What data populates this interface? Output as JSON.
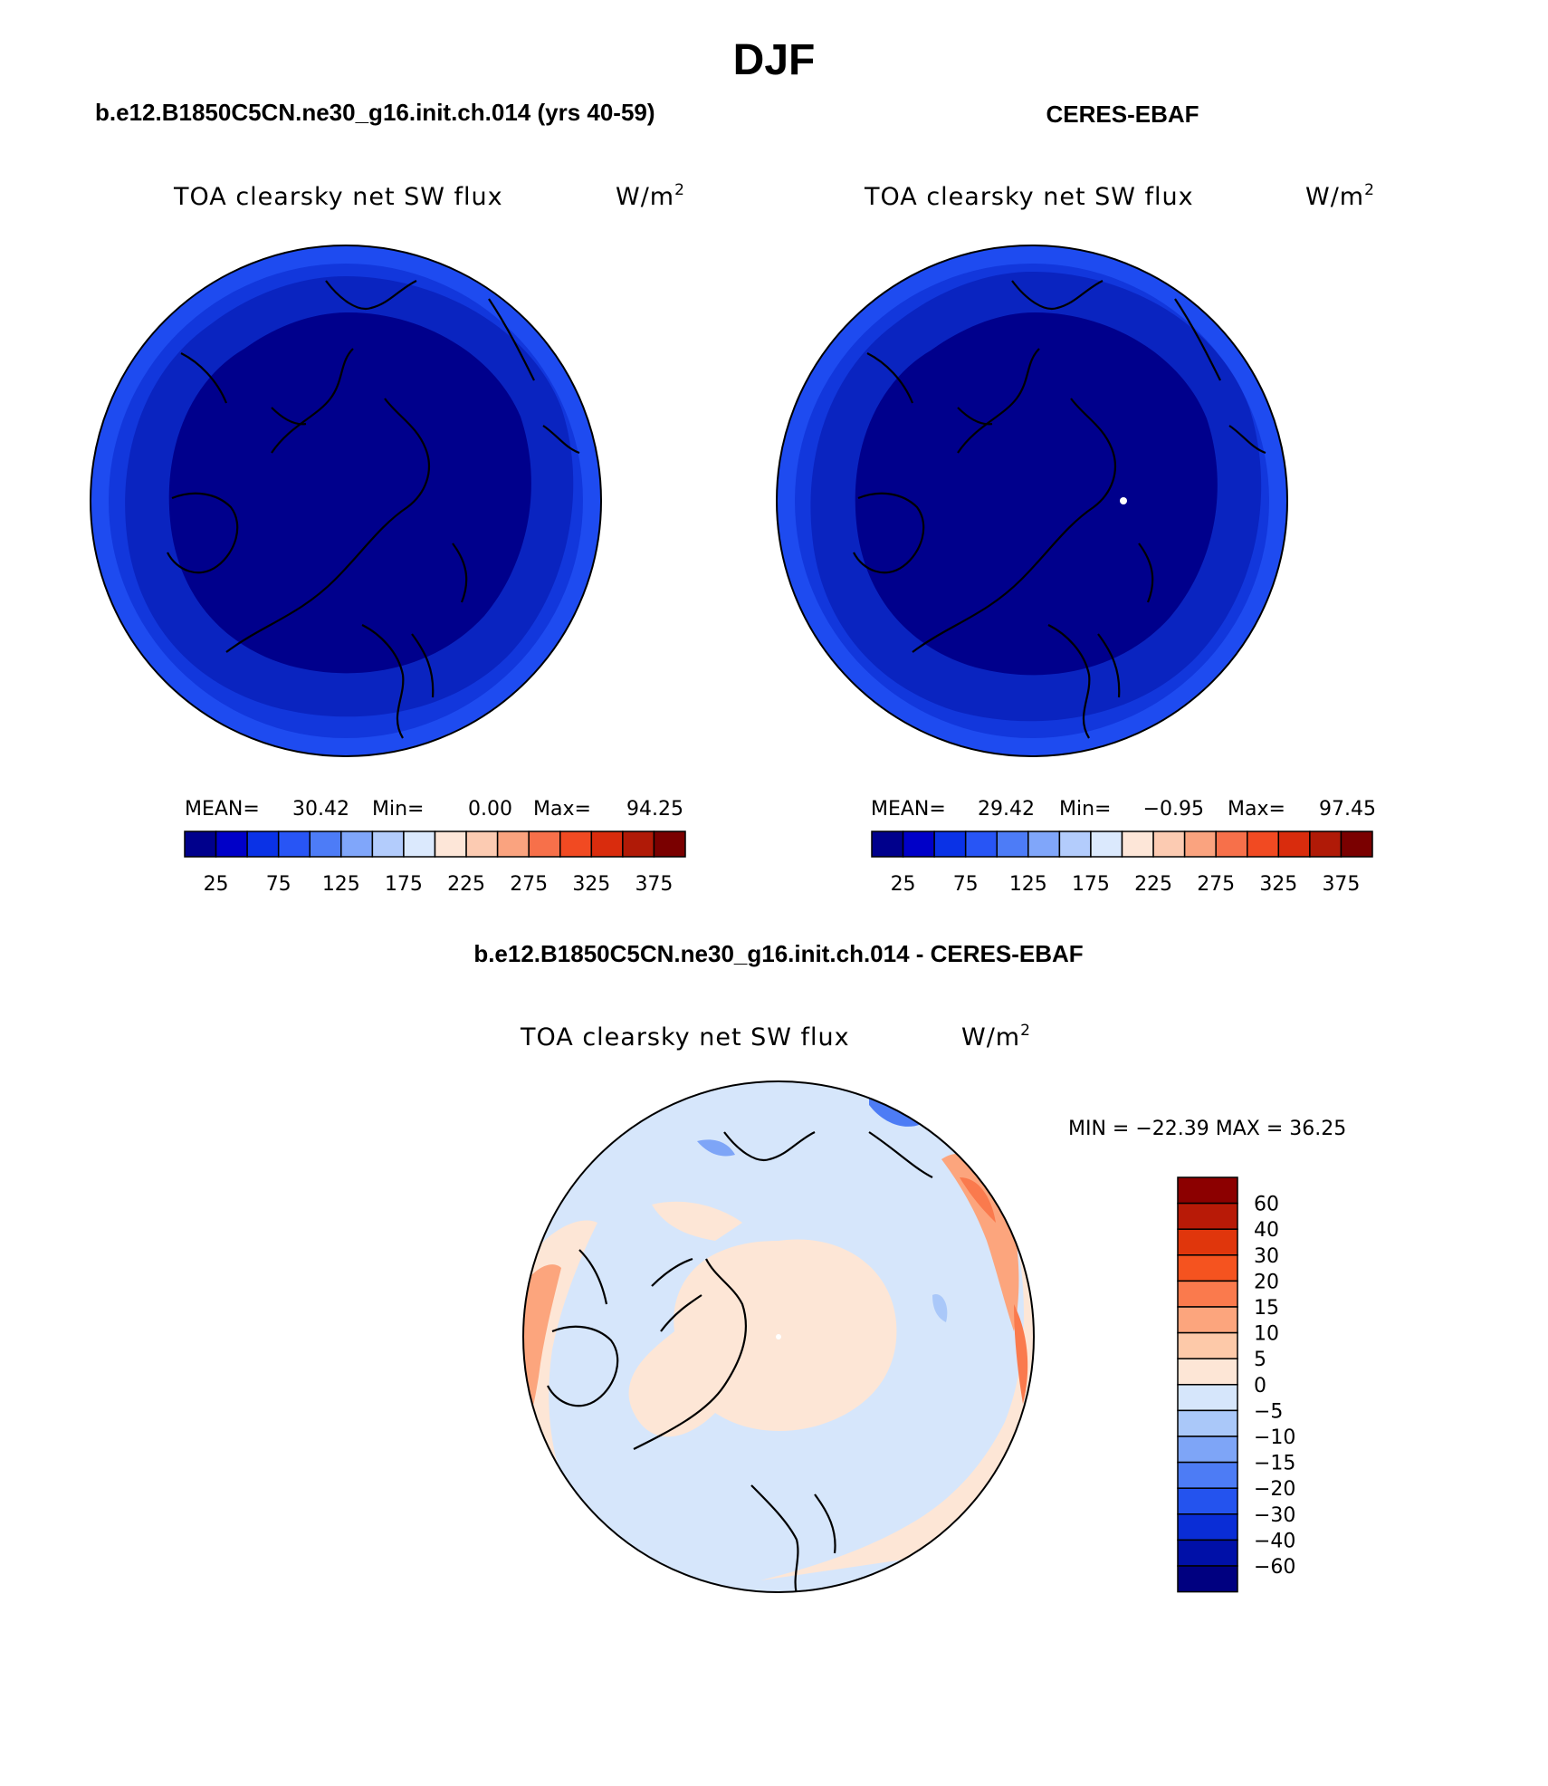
{
  "season": "DJF",
  "panels": [
    {
      "case_title": "b.e12.B1850C5CN.ne30_g16.init.ch.014 (yrs 40-59)",
      "variable": "TOA clearsky net SW flux",
      "units": "W/m",
      "units_sup": "2",
      "stats": {
        "mean_label": "MEAN=",
        "mean": "30.42",
        "min_label": "Min=",
        "min": "0.00",
        "max_label": "Max=",
        "max": "94.25"
      }
    },
    {
      "case_title": "CERES-EBAF",
      "variable": "TOA clearsky net SW flux",
      "units": "W/m",
      "units_sup": "2",
      "stats": {
        "mean_label": "MEAN=",
        "mean": "29.42",
        "min_label": "Min=",
        "min": "−0.95",
        "max_label": "Max=",
        "max": "97.45"
      }
    }
  ],
  "colorbar_abs": {
    "ticks": [
      "25",
      "75",
      "125",
      "175",
      "225",
      "275",
      "325",
      "375"
    ],
    "colors": [
      "#00008c",
      "#0000c8",
      "#0a32e6",
      "#2855f5",
      "#4d7cf7",
      "#80a6fa",
      "#b3ccfc",
      "#dbe9fd",
      "#fde6d8",
      "#fccbb2",
      "#faa37f",
      "#f7704a",
      "#f14a22",
      "#d92c0d",
      "#b01a07",
      "#7a0000"
    ]
  },
  "difference": {
    "case_title": "b.e12.B1850C5CN.ne30_g16.init.ch.014 - CERES-EBAF",
    "variable": "TOA clearsky net SW flux",
    "units": "W/m",
    "units_sup": "2",
    "minmax": "MIN = −22.39 MAX =  36.25",
    "colorbar": {
      "labels": [
        "60",
        "40",
        "30",
        "20",
        "15",
        "10",
        "5",
        "0",
        "−5",
        "−10",
        "−15",
        "−20",
        "−30",
        "−40",
        "−60"
      ],
      "colors": [
        "#8c0000",
        "#b81a07",
        "#e0360c",
        "#f5531f",
        "#fa7a4d",
        "#fca57d",
        "#fdc9a9",
        "#fde6d6",
        "#d6e6fb",
        "#aac8f9",
        "#7ea5f7",
        "#4d7cf5",
        "#2453ee",
        "#0a2dd6",
        "#0010a8",
        "#000080"
      ]
    }
  },
  "chart_data": [
    {
      "type": "map",
      "title": "b.e12.B1850C5CN.ne30_g16.init.ch.014 (yrs 40-59)",
      "variable": "TOA clearsky net SW flux",
      "units": "W/m2",
      "projection": "north polar stereographic",
      "mean": 30.42,
      "min": 0.0,
      "max": 94.25,
      "contour_levels": [
        0,
        25,
        50,
        75,
        100,
        125,
        150,
        175,
        200,
        225,
        250,
        275,
        300,
        325,
        350,
        375,
        400
      ]
    },
    {
      "type": "map",
      "title": "CERES-EBAF",
      "variable": "TOA clearsky net SW flux",
      "units": "W/m2",
      "projection": "north polar stereographic",
      "mean": 29.42,
      "min": -0.95,
      "max": 97.45,
      "contour_levels": [
        0,
        25,
        50,
        75,
        100,
        125,
        150,
        175,
        200,
        225,
        250,
        275,
        300,
        325,
        350,
        375,
        400
      ]
    },
    {
      "type": "map",
      "title": "b.e12.B1850C5CN.ne30_g16.init.ch.014 - CERES-EBAF",
      "variable": "TOA clearsky net SW flux",
      "units": "W/m2",
      "projection": "north polar stereographic",
      "min": -22.39,
      "max": 36.25,
      "contour_levels": [
        -60,
        -40,
        -30,
        -20,
        -15,
        -10,
        -5,
        0,
        5,
        10,
        15,
        20,
        30,
        40,
        60
      ]
    }
  ]
}
